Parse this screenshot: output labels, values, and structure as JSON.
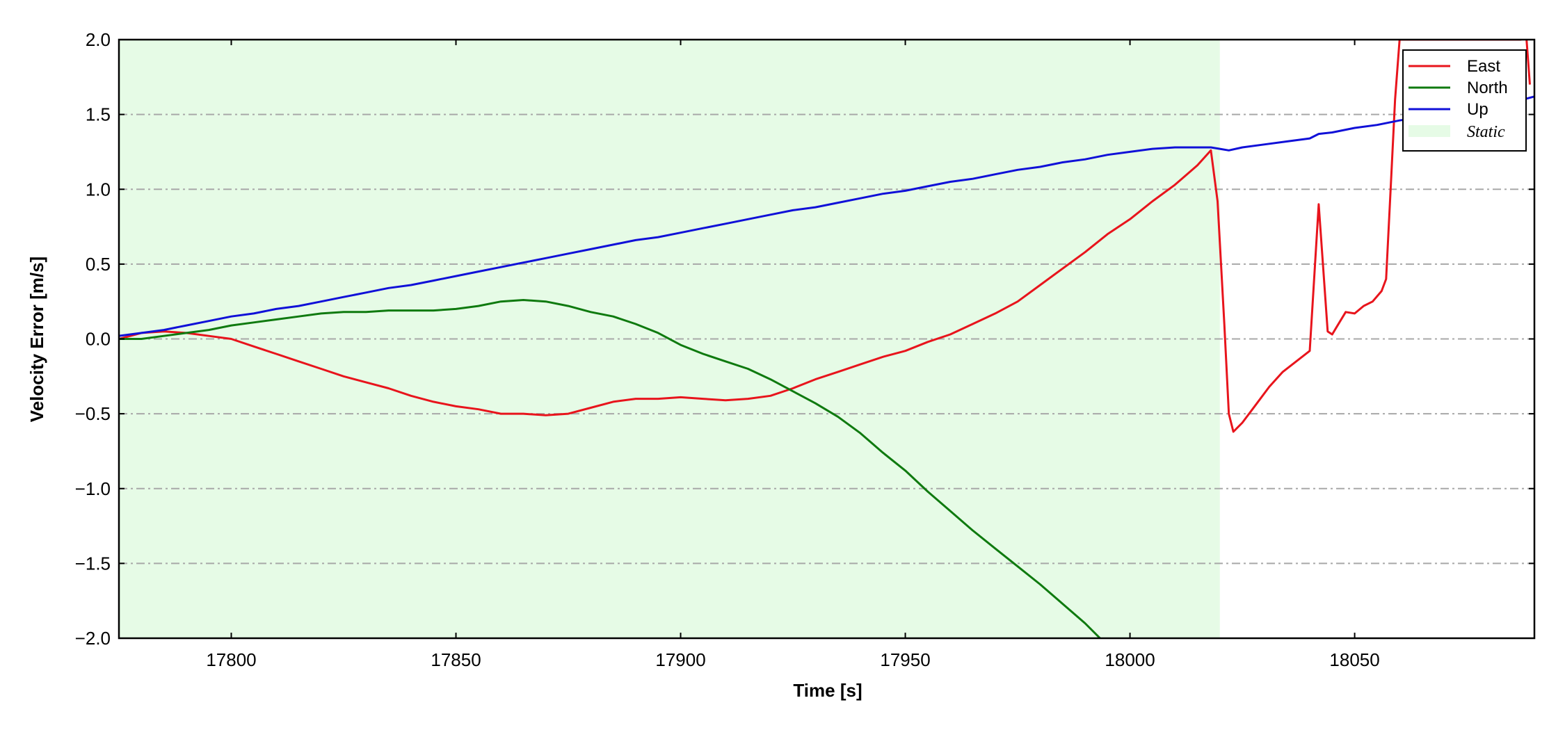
{
  "chart_data": {
    "type": "line",
    "title": "",
    "xlabel": "Time [s]",
    "ylabel": "Velocity Error [m/s]",
    "xlim": [
      17775,
      18090
    ],
    "ylim": [
      -2.0,
      2.0
    ],
    "xticks": [
      17800,
      17850,
      17900,
      17950,
      18000,
      18050
    ],
    "yticks": [
      -2.0,
      -1.5,
      -1.0,
      -0.5,
      0.0,
      0.5,
      1.0,
      1.5,
      2.0
    ],
    "xtick_labels": [
      "17800",
      "17850",
      "17900",
      "17950",
      "18000",
      "18050"
    ],
    "ytick_labels": [
      "−2.0",
      "−1.5",
      "−1.0",
      "−0.5",
      "0.0",
      "0.5",
      "1.0",
      "1.5",
      "2.0"
    ],
    "grid": "horizontal dash-dot",
    "legend_position": "top-right",
    "static_region": {
      "label": "Static",
      "x_start": 17775,
      "x_end": 18020,
      "color": "#e6fbe6"
    },
    "series": [
      {
        "name": "East",
        "color": "#e8141c",
        "x": [
          17775,
          17780,
          17785,
          17790,
          17795,
          17800,
          17805,
          17810,
          17815,
          17820,
          17825,
          17830,
          17835,
          17840,
          17845,
          17850,
          17855,
          17860,
          17865,
          17870,
          17875,
          17880,
          17885,
          17890,
          17895,
          17900,
          17905,
          17910,
          17915,
          17920,
          17925,
          17930,
          17935,
          17940,
          17945,
          17950,
          17955,
          17960,
          17965,
          17970,
          17975,
          17980,
          17985,
          17990,
          17995,
          18000,
          18005,
          18010,
          18015,
          18018,
          18019.5,
          18021,
          18022,
          18023,
          18025,
          18028,
          18031,
          18034,
          18037,
          18040,
          18042,
          18044,
          18045,
          18046,
          18048,
          18050,
          18052,
          18054,
          18056,
          18057,
          18058,
          18059,
          18060,
          18087,
          18088,
          18089
        ],
        "y": [
          0.0,
          0.04,
          0.05,
          0.04,
          0.02,
          0.0,
          -0.05,
          -0.1,
          -0.15,
          -0.2,
          -0.25,
          -0.29,
          -0.33,
          -0.38,
          -0.42,
          -0.45,
          -0.47,
          -0.5,
          -0.5,
          -0.51,
          -0.5,
          -0.46,
          -0.42,
          -0.4,
          -0.4,
          -0.39,
          -0.4,
          -0.41,
          -0.4,
          -0.38,
          -0.33,
          -0.27,
          -0.22,
          -0.17,
          -0.12,
          -0.08,
          -0.02,
          0.03,
          0.1,
          0.17,
          0.25,
          0.36,
          0.47,
          0.58,
          0.7,
          0.8,
          0.92,
          1.03,
          1.16,
          1.26,
          0.92,
          0.1,
          -0.5,
          -0.62,
          -0.56,
          -0.44,
          -0.32,
          -0.22,
          -0.15,
          -0.08,
          0.9,
          0.05,
          0.03,
          0.08,
          0.18,
          0.17,
          0.22,
          0.25,
          0.32,
          0.4,
          1.0,
          1.6,
          2.0,
          2.0,
          2.1,
          1.7
        ]
      },
      {
        "name": "North",
        "color": "#0f7a0f",
        "x": [
          17775,
          17780,
          17785,
          17790,
          17795,
          17800,
          17805,
          17810,
          17815,
          17820,
          17825,
          17830,
          17835,
          17840,
          17845,
          17850,
          17855,
          17860,
          17865,
          17870,
          17875,
          17880,
          17885,
          17890,
          17895,
          17900,
          17905,
          17910,
          17915,
          17920,
          17925,
          17930,
          17935,
          17940,
          17945,
          17950,
          17955,
          17960,
          17965,
          17970,
          17975,
          17980,
          17985,
          17990,
          17995
        ],
        "y": [
          0.0,
          0.0,
          0.02,
          0.04,
          0.06,
          0.09,
          0.11,
          0.13,
          0.15,
          0.17,
          0.18,
          0.18,
          0.19,
          0.19,
          0.19,
          0.2,
          0.22,
          0.25,
          0.26,
          0.25,
          0.22,
          0.18,
          0.15,
          0.1,
          0.04,
          -0.04,
          -0.1,
          -0.15,
          -0.2,
          -0.27,
          -0.35,
          -0.43,
          -0.52,
          -0.63,
          -0.76,
          -0.88,
          -1.02,
          -1.15,
          -1.28,
          -1.4,
          -1.52,
          -1.64,
          -1.77,
          -1.9,
          -2.05
        ]
      },
      {
        "name": "Up",
        "color": "#1010d8",
        "x": [
          17775,
          17780,
          17785,
          17790,
          17795,
          17800,
          17805,
          17810,
          17815,
          17820,
          17825,
          17830,
          17835,
          17840,
          17845,
          17850,
          17855,
          17860,
          17865,
          17870,
          17875,
          17880,
          17885,
          17890,
          17895,
          17900,
          17905,
          17910,
          17915,
          17920,
          17925,
          17930,
          17935,
          17940,
          17945,
          17950,
          17955,
          17960,
          17965,
          17970,
          17975,
          17980,
          17985,
          17990,
          17995,
          18000,
          18005,
          18010,
          18015,
          18018,
          18020,
          18022,
          18025,
          18030,
          18035,
          18040,
          18042,
          18045,
          18050,
          18055,
          18060,
          18065,
          18070,
          18075,
          18080,
          18085,
          18090
        ],
        "y": [
          0.02,
          0.04,
          0.06,
          0.09,
          0.12,
          0.15,
          0.17,
          0.2,
          0.22,
          0.25,
          0.28,
          0.31,
          0.34,
          0.36,
          0.39,
          0.42,
          0.45,
          0.48,
          0.51,
          0.54,
          0.57,
          0.6,
          0.63,
          0.66,
          0.68,
          0.71,
          0.74,
          0.77,
          0.8,
          0.83,
          0.86,
          0.88,
          0.91,
          0.94,
          0.97,
          0.99,
          1.02,
          1.05,
          1.07,
          1.1,
          1.13,
          1.15,
          1.18,
          1.2,
          1.23,
          1.25,
          1.27,
          1.28,
          1.28,
          1.28,
          1.27,
          1.26,
          1.28,
          1.3,
          1.32,
          1.34,
          1.37,
          1.38,
          1.41,
          1.43,
          1.46,
          1.48,
          1.5,
          1.52,
          1.54,
          1.58,
          1.62
        ]
      }
    ]
  }
}
